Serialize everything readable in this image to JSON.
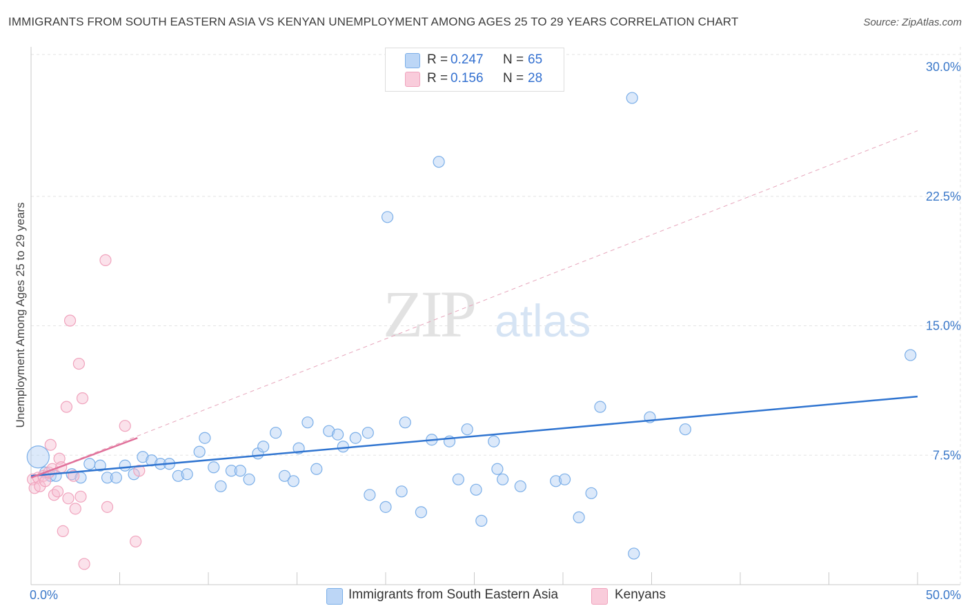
{
  "title": "IMMIGRANTS FROM SOUTH EASTERN ASIA VS KENYAN UNEMPLOYMENT AMONG AGES 25 TO 29 YEARS CORRELATION CHART",
  "source": "Source: ZipAtlas.com",
  "watermark": {
    "zip": "ZIP",
    "atlas": "atlas"
  },
  "legend": [
    {
      "r_label": "R =",
      "r_value": "0.247",
      "n_label": "N =",
      "n_value": "65"
    },
    {
      "r_label": "R =",
      "r_value": "0.156",
      "n_label": "N =",
      "n_value": "28"
    }
  ],
  "chart_data": {
    "type": "scatter",
    "ylabel": "Unemployment Among Ages 25 to 29 years",
    "xlim": [
      0,
      50
    ],
    "ylim": [
      0,
      30
    ],
    "x_tick_labels": [
      "0.0%",
      "50.0%"
    ],
    "y_ticks": [
      7.5,
      15.0,
      22.5,
      30.0
    ],
    "y_tick_labels": [
      "7.5%",
      "15.0%",
      "22.5%",
      "30.0%"
    ],
    "grid": true,
    "legend_position": "top-center",
    "series": [
      {
        "name": "Immigrants from South Eastern Asia",
        "color": "#7aaee8",
        "trend_color": "#2f74d0",
        "trend": {
          "x": [
            0,
            50
          ],
          "y": [
            6.3,
            10.9
          ]
        },
        "points": [
          [
            0.4,
            7.4
          ],
          [
            0.8,
            6.5
          ],
          [
            1.1,
            6.3
          ],
          [
            1.4,
            6.3
          ],
          [
            2.3,
            6.4
          ],
          [
            2.8,
            6.2
          ],
          [
            3.3,
            7.0
          ],
          [
            3.9,
            6.9
          ],
          [
            4.3,
            6.2
          ],
          [
            4.8,
            6.2
          ],
          [
            5.3,
            6.9
          ],
          [
            5.8,
            6.4
          ],
          [
            6.3,
            7.4
          ],
          [
            6.8,
            7.2
          ],
          [
            7.3,
            7.0
          ],
          [
            7.8,
            7.0
          ],
          [
            8.3,
            6.3
          ],
          [
            8.8,
            6.4
          ],
          [
            9.5,
            7.7
          ],
          [
            9.8,
            8.5
          ],
          [
            10.3,
            6.8
          ],
          [
            10.7,
            5.7
          ],
          [
            11.3,
            6.6
          ],
          [
            11.8,
            6.6
          ],
          [
            12.3,
            6.1
          ],
          [
            12.8,
            7.6
          ],
          [
            13.1,
            8.0
          ],
          [
            13.8,
            8.8
          ],
          [
            14.3,
            6.3
          ],
          [
            14.8,
            6.0
          ],
          [
            15.1,
            7.9
          ],
          [
            15.6,
            9.4
          ],
          [
            16.1,
            6.7
          ],
          [
            16.8,
            8.9
          ],
          [
            17.3,
            8.7
          ],
          [
            17.6,
            8.0
          ],
          [
            18.3,
            8.5
          ],
          [
            19.0,
            8.8
          ],
          [
            19.1,
            5.2
          ],
          [
            20.0,
            4.5
          ],
          [
            20.1,
            21.3
          ],
          [
            20.9,
            5.4
          ],
          [
            21.1,
            9.4
          ],
          [
            22.0,
            4.2
          ],
          [
            22.6,
            8.4
          ],
          [
            23.0,
            24.5
          ],
          [
            23.6,
            8.3
          ],
          [
            24.1,
            6.1
          ],
          [
            24.6,
            9.0
          ],
          [
            25.1,
            5.5
          ],
          [
            25.4,
            3.7
          ],
          [
            26.1,
            8.3
          ],
          [
            26.3,
            6.7
          ],
          [
            26.6,
            6.1
          ],
          [
            27.6,
            5.7
          ],
          [
            29.6,
            6.0
          ],
          [
            30.1,
            6.1
          ],
          [
            30.9,
            3.9
          ],
          [
            31.6,
            5.3
          ],
          [
            32.1,
            10.3
          ],
          [
            33.9,
            28.2
          ],
          [
            34.0,
            1.8
          ],
          [
            34.9,
            9.7
          ],
          [
            36.9,
            9.0
          ],
          [
            49.6,
            13.3
          ]
        ]
      },
      {
        "name": "Kenyans",
        "color": "#f0a2bc",
        "trend_color": "#e0709a",
        "trend": {
          "x": [
            0,
            6
          ],
          "y": [
            6.2,
            8.5
          ]
        },
        "trend_extended": {
          "x": [
            0,
            50
          ],
          "y": [
            6.2,
            26.3
          ]
        },
        "points": [
          [
            0.1,
            6.1
          ],
          [
            0.2,
            5.6
          ],
          [
            0.4,
            6.2
          ],
          [
            0.5,
            5.7
          ],
          [
            0.7,
            6.3
          ],
          [
            0.8,
            6.0
          ],
          [
            1.0,
            6.5
          ],
          [
            1.1,
            8.1
          ],
          [
            1.2,
            6.7
          ],
          [
            1.3,
            5.2
          ],
          [
            1.5,
            5.4
          ],
          [
            1.6,
            7.3
          ],
          [
            1.7,
            6.8
          ],
          [
            1.8,
            3.1
          ],
          [
            2.0,
            10.3
          ],
          [
            2.1,
            5.0
          ],
          [
            2.2,
            15.3
          ],
          [
            2.4,
            6.3
          ],
          [
            2.5,
            4.4
          ],
          [
            2.7,
            12.8
          ],
          [
            2.8,
            5.1
          ],
          [
            2.9,
            10.8
          ],
          [
            3.0,
            1.2
          ],
          [
            4.2,
            18.8
          ],
          [
            4.3,
            4.5
          ],
          [
            5.3,
            9.2
          ],
          [
            5.9,
            2.5
          ],
          [
            6.1,
            6.6
          ]
        ]
      }
    ]
  }
}
